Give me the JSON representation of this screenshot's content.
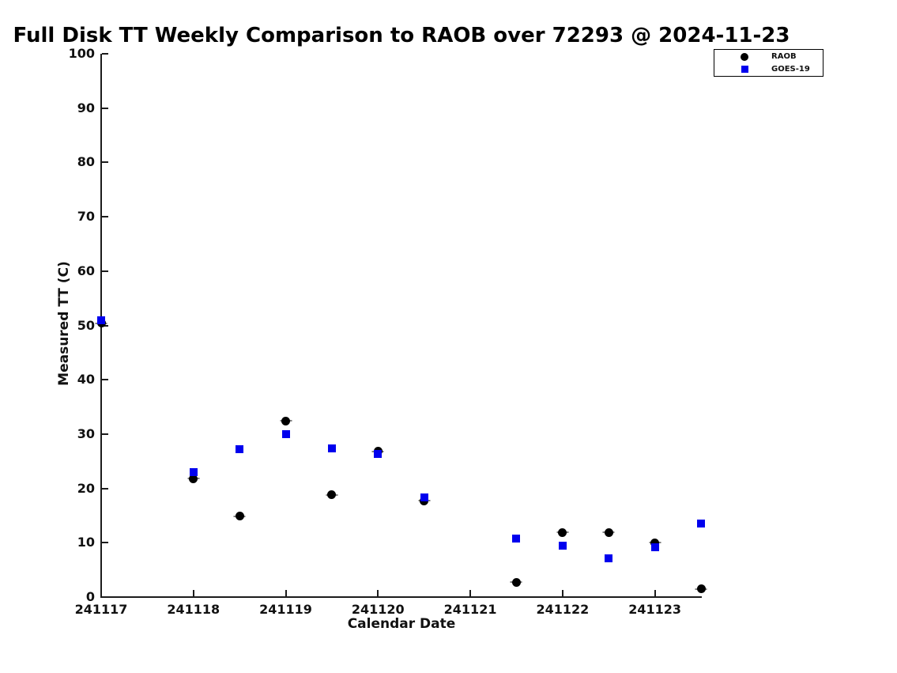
{
  "page": {
    "background": "#ffffff"
  },
  "chart_data": {
    "type": "scatter",
    "title": "Full Disk TT Weekly Comparison to RAOB over 72293 @ 2024-11-23",
    "xlabel": "Calendar Date",
    "ylabel": "Measured TT (C)",
    "xlim": [
      241117,
      241123.5
    ],
    "ylim": [
      0,
      100
    ],
    "xticks": [
      241117,
      241118,
      241119,
      241120,
      241121,
      241122,
      241123
    ],
    "yticks": [
      0,
      10,
      20,
      30,
      40,
      50,
      60,
      70,
      80,
      90,
      100
    ],
    "grid": false,
    "legend": {
      "position": "top-right",
      "entries": [
        "RAOB",
        "GOES-19"
      ]
    },
    "series": [
      {
        "name": "RAOB",
        "marker": "circle",
        "color": "#000000",
        "x": [
          241117,
          241118,
          241118.5,
          241119,
          241119.5,
          241120,
          241120.5,
          241121.5,
          241122,
          241122.5,
          241123,
          241123.5
        ],
        "y": [
          50.4,
          21.8,
          14.9,
          32.4,
          18.8,
          26.8,
          17.7,
          2.7,
          11.9,
          11.9,
          10.0,
          1.5
        ]
      },
      {
        "name": "GOES-19",
        "marker": "square",
        "color": "#0000EE",
        "x": [
          241117,
          241118,
          241118.5,
          241119,
          241119.5,
          241120,
          241120.5,
          241121.5,
          241122,
          241122.5,
          241123,
          241123.5
        ],
        "y": [
          50.9,
          23.0,
          27.2,
          30.0,
          27.3,
          26.3,
          18.4,
          10.7,
          9.5,
          7.2,
          9.1,
          13.6
        ]
      }
    ]
  }
}
